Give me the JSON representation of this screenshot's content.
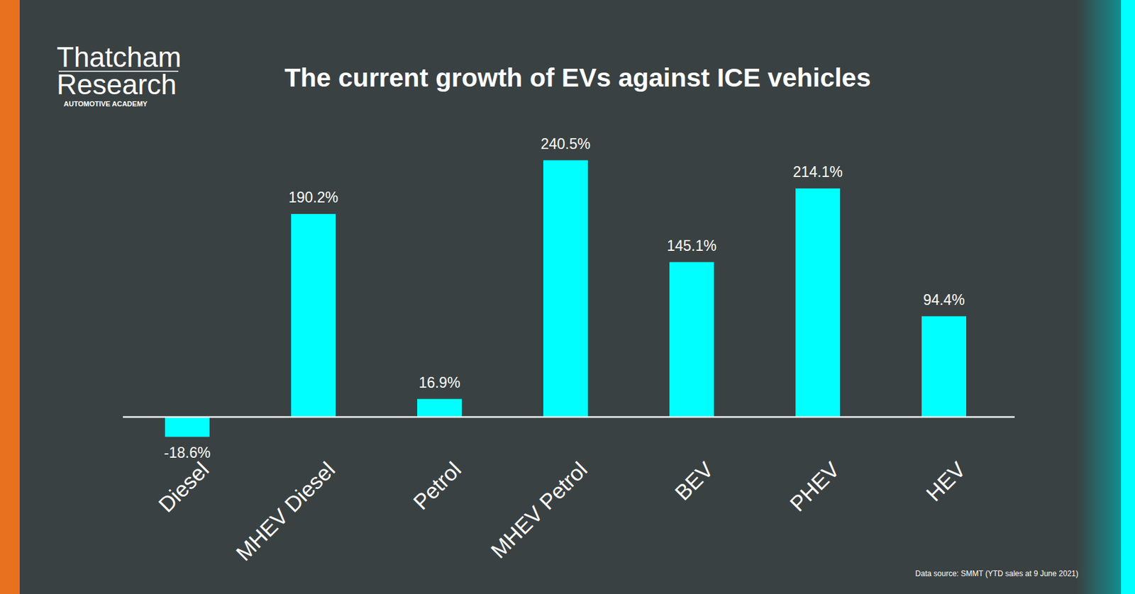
{
  "chart_data": {
    "type": "bar",
    "title": "The current growth of EVs against ICE vehicles",
    "brand": [
      "Thatcham",
      "Research"
    ],
    "brand_tagline": "AUTOMOTIVE ACADEMY",
    "source": "Data source: SMMT (YTD sales at 9 June 2021)",
    "categories": [
      "Diesel",
      "MHEV Diesel",
      "Petrol",
      "MHEV Petrol",
      "BEV",
      "PHEV",
      "HEV"
    ],
    "values": [
      -18.6,
      190.2,
      16.9,
      240.5,
      145.1,
      214.1,
      94.4
    ],
    "value_labels": [
      "-18.6%",
      "190.2%",
      "16.9%",
      "240.5%",
      "145.1%",
      "214.1%",
      "94.4%"
    ],
    "color": "#00ffff",
    "ylim": [
      -40,
      260
    ],
    "grid": false,
    "data_labels": true,
    "tick_labels": "x"
  }
}
